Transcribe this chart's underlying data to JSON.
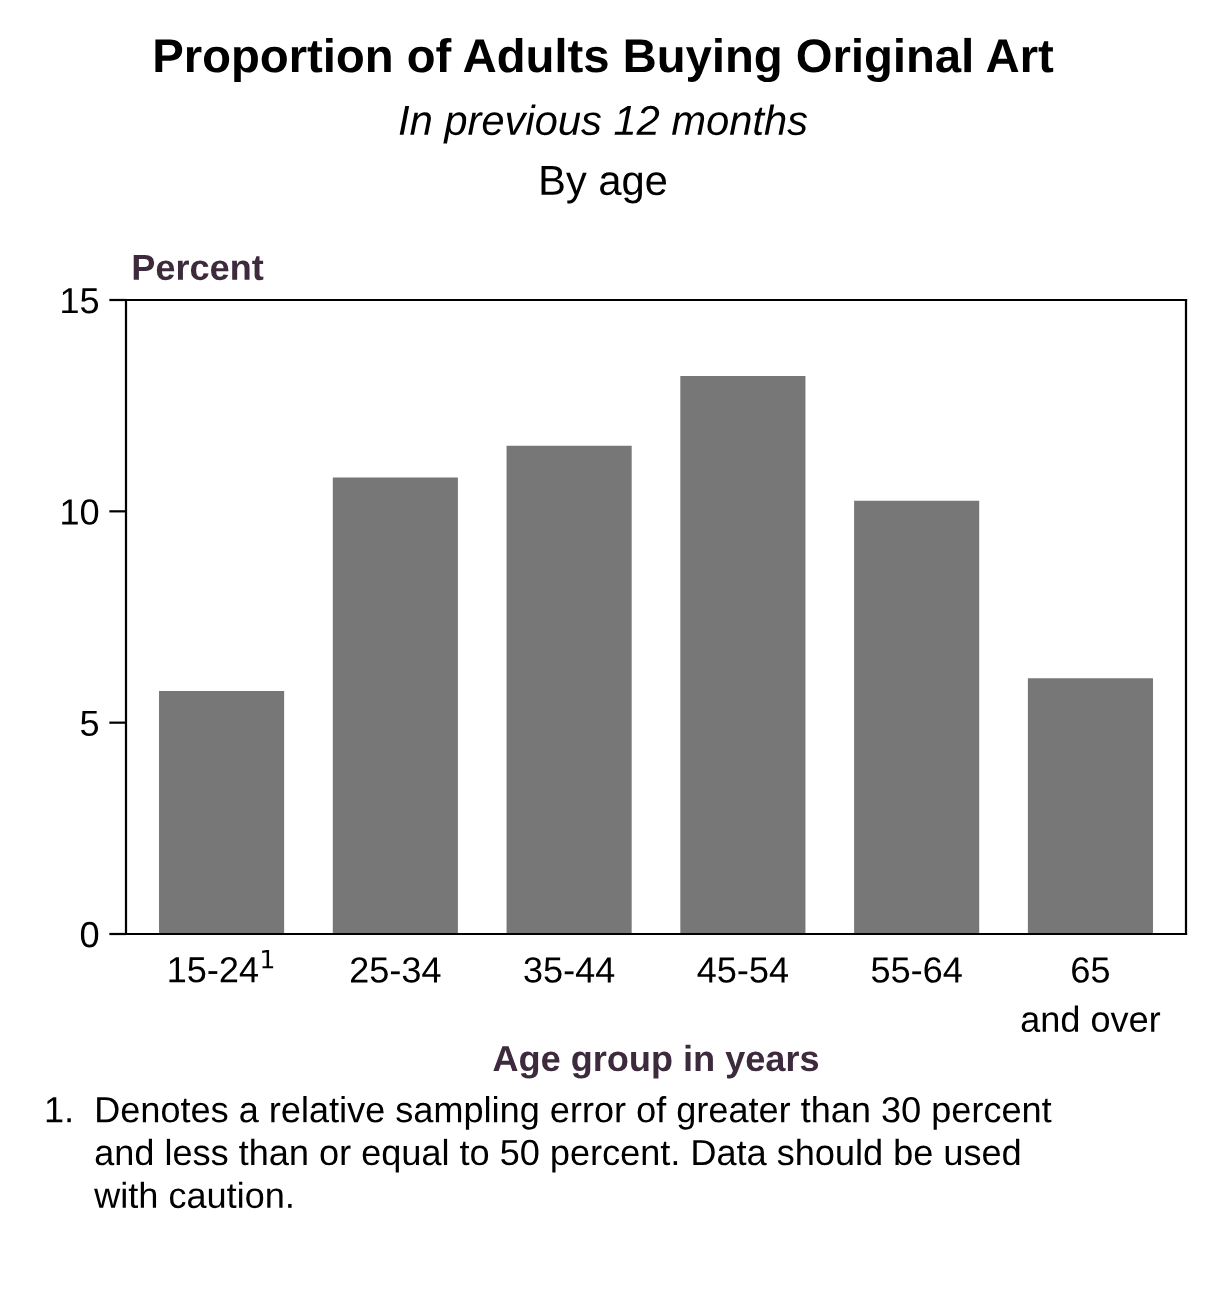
{
  "chart_data": {
    "type": "bar",
    "title": "Proportion of Adults Buying Original Art",
    "subtitle": "In previous 12 months\nBy age",
    "xlabel": "Age group in years",
    "ylabel": "Percent",
    "categories": [
      "15-24$^{1}$",
      "25-34",
      "35-44",
      "45-54",
      "55-64",
      "65\nand over"
    ],
    "values": [
      5.75,
      10.8,
      11.55,
      13.2,
      10.25,
      6.05
    ],
    "color": "#777777",
    "ylim": [
      0,
      15
    ],
    "yticks": [
      0,
      5,
      10,
      15
    ],
    "grid": false,
    "annotations": [
      "1.  Denotes a relative sampling error of greater than 30 percent\n     and less than or equal to 50 percent. Data should be used\n     with caution."
    ]
  }
}
